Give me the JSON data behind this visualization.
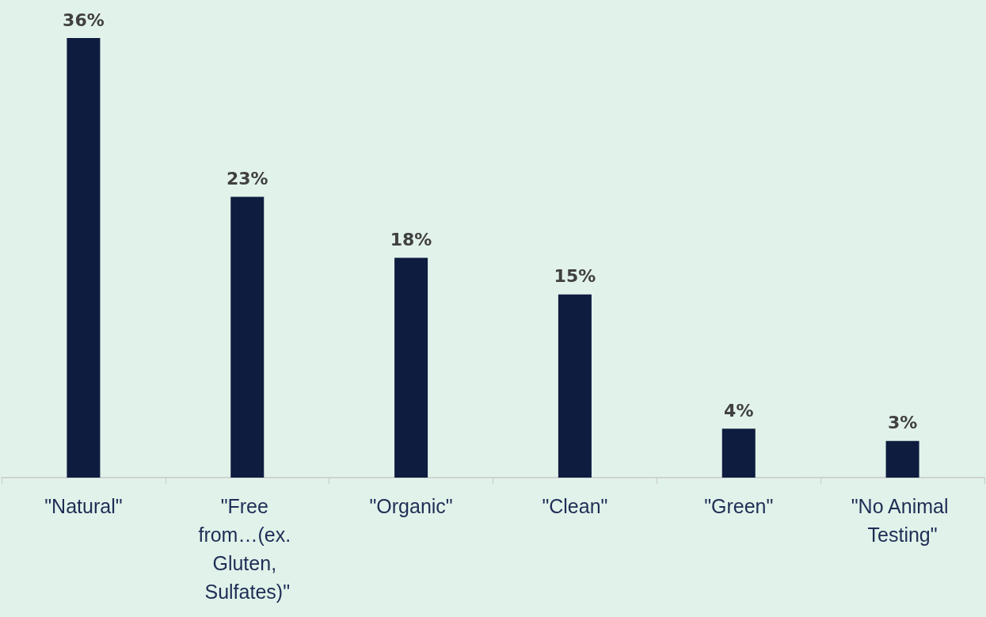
{
  "chart_data": {
    "type": "bar",
    "categories": [
      "\"Natural\"",
      "\"Free from…(ex. Gluten, Sulfates)\"",
      "\"Organic\"",
      "\"Clean\"",
      "\"Green\"",
      "\"No Animal Testing\""
    ],
    "values": [
      36,
      23,
      18,
      15,
      4,
      3
    ],
    "value_labels": [
      "36%",
      "23%",
      "18%",
      "15%",
      "4%",
      "3%"
    ],
    "color": "#0e1c3f",
    "tick_labels": "x"
  }
}
